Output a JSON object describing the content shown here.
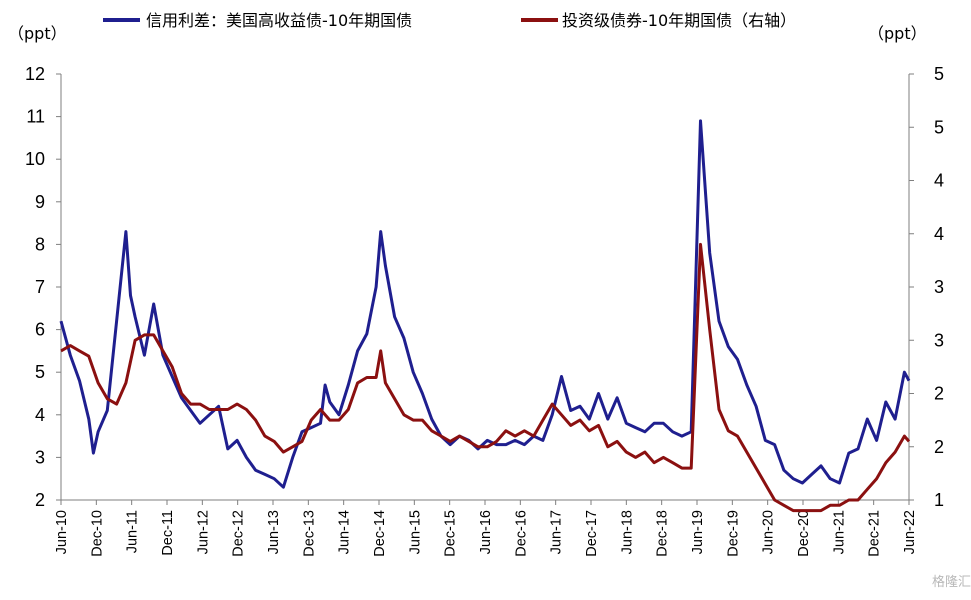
{
  "chart_data": {
    "type": "line",
    "left_unit": "（ppt）",
    "right_unit": "（ppt）",
    "y_left": {
      "min": 2,
      "max": 12,
      "ticks": [
        "2",
        "3",
        "4",
        "5",
        "6",
        "7",
        "8",
        "9",
        "10",
        "11",
        "12"
      ]
    },
    "y_right": {
      "min": 1,
      "max": 5,
      "ticks": [
        "1",
        "2",
        "2",
        "3",
        "3",
        "4",
        "4",
        "5",
        "5"
      ]
    },
    "x_labels": [
      "Jun-10",
      "Dec-10",
      "Jun-11",
      "Dec-11",
      "Jun-12",
      "Dec-12",
      "Jun-13",
      "Dec-13",
      "Jun-14",
      "Dec-14",
      "Jun-15",
      "Dec-15",
      "Jun-16",
      "Dec-16",
      "Jun-17",
      "Dec-17",
      "Jun-18",
      "Dec-18",
      "Jun-19",
      "Dec-19",
      "Jun-20",
      "Dec-20",
      "Jun-21",
      "Dec-21",
      "Jun-22"
    ],
    "series": [
      {
        "name": "信用利差：美国高收益债-10年期国债",
        "axis": "left",
        "color": "#1f1f8f",
        "points": [
          [
            0,
            6.2
          ],
          [
            1,
            5.4
          ],
          [
            2,
            4.8
          ],
          [
            3,
            3.9
          ],
          [
            3.5,
            3.1
          ],
          [
            4,
            3.6
          ],
          [
            5,
            4.1
          ],
          [
            6,
            6.2
          ],
          [
            7,
            8.3
          ],
          [
            7.5,
            6.8
          ],
          [
            8,
            6.3
          ],
          [
            9,
            5.4
          ],
          [
            10,
            6.6
          ],
          [
            11,
            5.4
          ],
          [
            12,
            4.9
          ],
          [
            13,
            4.4
          ],
          [
            14,
            4.1
          ],
          [
            15,
            3.8
          ],
          [
            16,
            4.0
          ],
          [
            17,
            4.2
          ],
          [
            18,
            3.2
          ],
          [
            19,
            3.4
          ],
          [
            20,
            3.0
          ],
          [
            21,
            2.7
          ],
          [
            22,
            2.6
          ],
          [
            23,
            2.5
          ],
          [
            24,
            2.3
          ],
          [
            25,
            3.0
          ],
          [
            26,
            3.6
          ],
          [
            27,
            3.7
          ],
          [
            28,
            3.8
          ],
          [
            28.5,
            4.7
          ],
          [
            29,
            4.3
          ],
          [
            30,
            4.0
          ],
          [
            31,
            4.7
          ],
          [
            32,
            5.5
          ],
          [
            33,
            5.9
          ],
          [
            34,
            7.0
          ],
          [
            34.5,
            8.3
          ],
          [
            35,
            7.5
          ],
          [
            36,
            6.3
          ],
          [
            37,
            5.8
          ],
          [
            38,
            5.0
          ],
          [
            39,
            4.5
          ],
          [
            40,
            3.9
          ],
          [
            41,
            3.5
          ],
          [
            42,
            3.3
          ],
          [
            43,
            3.5
          ],
          [
            44,
            3.4
          ],
          [
            45,
            3.2
          ],
          [
            46,
            3.4
          ],
          [
            47,
            3.3
          ],
          [
            48,
            3.3
          ],
          [
            49,
            3.4
          ],
          [
            50,
            3.3
          ],
          [
            51,
            3.5
          ],
          [
            52,
            3.4
          ],
          [
            53,
            4.0
          ],
          [
            54,
            4.9
          ],
          [
            55,
            4.1
          ],
          [
            56,
            4.2
          ],
          [
            57,
            3.9
          ],
          [
            58,
            4.5
          ],
          [
            59,
            3.9
          ],
          [
            60,
            4.4
          ],
          [
            61,
            3.8
          ],
          [
            62,
            3.7
          ],
          [
            63,
            3.6
          ],
          [
            64,
            3.8
          ],
          [
            65,
            3.8
          ],
          [
            66,
            3.6
          ],
          [
            67,
            3.5
          ],
          [
            68,
            3.6
          ],
          [
            69,
            10.9
          ],
          [
            70,
            7.8
          ],
          [
            71,
            6.2
          ],
          [
            72,
            5.6
          ],
          [
            73,
            5.3
          ],
          [
            74,
            4.7
          ],
          [
            75,
            4.2
          ],
          [
            76,
            3.4
          ],
          [
            77,
            3.3
          ],
          [
            78,
            2.7
          ],
          [
            79,
            2.5
          ],
          [
            80,
            2.4
          ],
          [
            81,
            2.6
          ],
          [
            82,
            2.8
          ],
          [
            83,
            2.5
          ],
          [
            84,
            2.4
          ],
          [
            85,
            3.1
          ],
          [
            86,
            3.2
          ],
          [
            87,
            3.9
          ],
          [
            88,
            3.4
          ],
          [
            89,
            4.3
          ],
          [
            90,
            3.9
          ],
          [
            91,
            5.0
          ],
          [
            91.5,
            4.8
          ]
        ]
      },
      {
        "name": "投资级债券-10年期国债（右轴）",
        "axis": "right",
        "color": "#8b1010",
        "points": [
          [
            0,
            2.4
          ],
          [
            1,
            2.45
          ],
          [
            2,
            2.4
          ],
          [
            3,
            2.35
          ],
          [
            4,
            2.1
          ],
          [
            5,
            1.95
          ],
          [
            6,
            1.9
          ],
          [
            7,
            2.1
          ],
          [
            8,
            2.5
          ],
          [
            9,
            2.55
          ],
          [
            10,
            2.55
          ],
          [
            11,
            2.4
          ],
          [
            12,
            2.25
          ],
          [
            13,
            2.0
          ],
          [
            14,
            1.9
          ],
          [
            15,
            1.9
          ],
          [
            16,
            1.85
          ],
          [
            17,
            1.85
          ],
          [
            18,
            1.85
          ],
          [
            19,
            1.9
          ],
          [
            20,
            1.85
          ],
          [
            21,
            1.75
          ],
          [
            22,
            1.6
          ],
          [
            23,
            1.55
          ],
          [
            24,
            1.45
          ],
          [
            25,
            1.5
          ],
          [
            26,
            1.55
          ],
          [
            27,
            1.75
          ],
          [
            28,
            1.85
          ],
          [
            29,
            1.75
          ],
          [
            30,
            1.75
          ],
          [
            31,
            1.85
          ],
          [
            32,
            2.1
          ],
          [
            33,
            2.15
          ],
          [
            34,
            2.15
          ],
          [
            34.5,
            2.4
          ],
          [
            35,
            2.1
          ],
          [
            36,
            1.95
          ],
          [
            37,
            1.8
          ],
          [
            38,
            1.75
          ],
          [
            39,
            1.75
          ],
          [
            40,
            1.65
          ],
          [
            41,
            1.6
          ],
          [
            42,
            1.55
          ],
          [
            43,
            1.6
          ],
          [
            44,
            1.55
          ],
          [
            45,
            1.5
          ],
          [
            46,
            1.5
          ],
          [
            47,
            1.55
          ],
          [
            48,
            1.65
          ],
          [
            49,
            1.6
          ],
          [
            50,
            1.65
          ],
          [
            51,
            1.6
          ],
          [
            52,
            1.75
          ],
          [
            53,
            1.9
          ],
          [
            54,
            1.8
          ],
          [
            55,
            1.7
          ],
          [
            56,
            1.75
          ],
          [
            57,
            1.65
          ],
          [
            58,
            1.7
          ],
          [
            59,
            1.5
          ],
          [
            60,
            1.55
          ],
          [
            61,
            1.45
          ],
          [
            62,
            1.4
          ],
          [
            63,
            1.45
          ],
          [
            64,
            1.35
          ],
          [
            65,
            1.4
          ],
          [
            66,
            1.35
          ],
          [
            67,
            1.3
          ],
          [
            68,
            1.3
          ],
          [
            69,
            3.4
          ],
          [
            70,
            2.6
          ],
          [
            71,
            1.85
          ],
          [
            72,
            1.65
          ],
          [
            73,
            1.6
          ],
          [
            74,
            1.45
          ],
          [
            75,
            1.3
          ],
          [
            76,
            1.15
          ],
          [
            77,
            1.0
          ],
          [
            78,
            0.95
          ],
          [
            79,
            0.9
          ],
          [
            80,
            0.9
          ],
          [
            81,
            0.9
          ],
          [
            82,
            0.9
          ],
          [
            83,
            0.95
          ],
          [
            84,
            0.95
          ],
          [
            85,
            1.0
          ],
          [
            86,
            1.0
          ],
          [
            87,
            1.1
          ],
          [
            88,
            1.2
          ],
          [
            89,
            1.35
          ],
          [
            90,
            1.45
          ],
          [
            91,
            1.6
          ],
          [
            91.5,
            1.55
          ]
        ]
      }
    ]
  },
  "watermark": "格隆汇"
}
